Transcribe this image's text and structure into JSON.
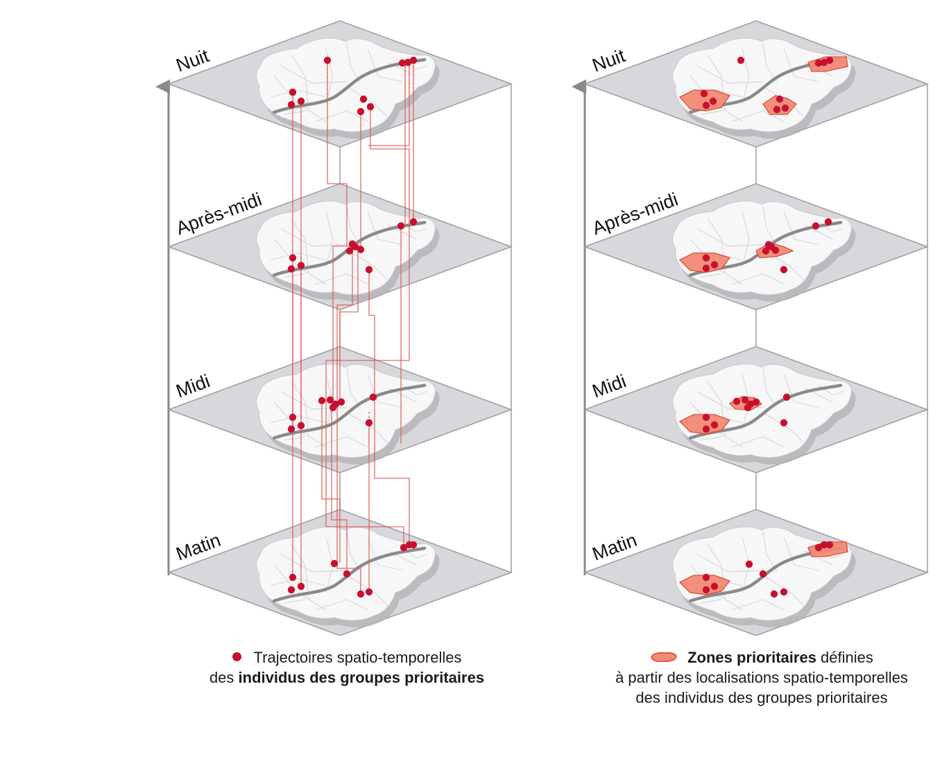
{
  "colors": {
    "plane_fill": "#d8d7db",
    "plane_stroke": "#9c9ba0",
    "map_fill": "#f7f7f7",
    "map_shadow": "#b4b3b8",
    "river": "#8a8a8a",
    "point": "#c8102e",
    "trajectory": "#e05a55",
    "zone_fill": "#f28b76",
    "zone_stroke": "#d9442f",
    "axis": "#8a8a8a"
  },
  "left_panel": {
    "layers": [
      {
        "label": "Nuit"
      },
      {
        "label": "Après-midi"
      },
      {
        "label": "Midi"
      },
      {
        "label": "Matin"
      }
    ]
  },
  "right_panel": {
    "layers": [
      {
        "label": "Nuit"
      },
      {
        "label": "Après-midi"
      },
      {
        "label": "Midi"
      },
      {
        "label": "Matin"
      }
    ]
  },
  "legend_left": {
    "symbol": "point-icon",
    "line1": "Trajectoires spatio-temporelles",
    "line2_prefix": "des ",
    "line2_bold": "individus des groupes prioritaires"
  },
  "legend_right": {
    "symbol": "zone-icon",
    "line1_bold": "Zones prioritaires",
    "line1_rest": " définies",
    "line2": "à partir des localisations spatio-temporelles",
    "line3": "des individus des groupes prioritaires"
  }
}
